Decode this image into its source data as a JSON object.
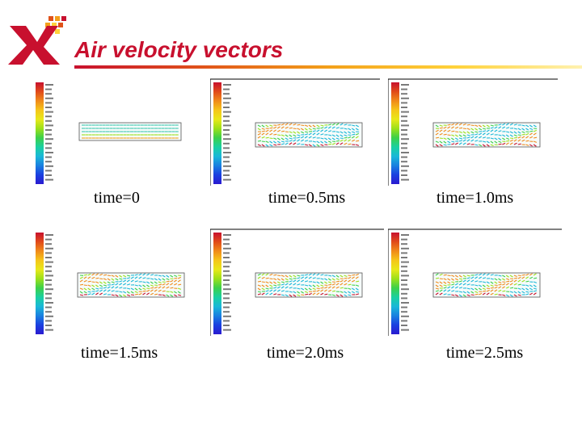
{
  "slide": {
    "title": "Air velocity vectors",
    "accent_color": "#c8102e",
    "logo_icon": "x-logo-with-color-pixels"
  },
  "panels": [
    {
      "caption": "time=0"
    },
    {
      "caption": "time=0.5ms"
    },
    {
      "caption": "time=1.0ms"
    },
    {
      "caption": "time=1.5ms"
    },
    {
      "caption": "time=2.0ms"
    },
    {
      "caption": "time=2.5ms"
    }
  ]
}
